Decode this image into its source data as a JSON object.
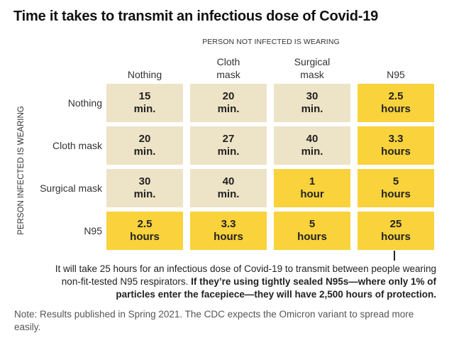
{
  "chart_data": {
    "type": "table",
    "title": "Time it takes to transmit an infectious dose of Covid-19",
    "column_group_label": "PERSON NOT INFECTED IS WEARING",
    "row_group_label": "PERSON INFECTED IS WEARING",
    "columns": [
      [
        "Nothing"
      ],
      [
        "Cloth",
        "mask"
      ],
      [
        "Surgical",
        "mask"
      ],
      [
        "N95"
      ]
    ],
    "rows": [
      "Nothing",
      "Cloth mask",
      "Surgical mask",
      "N95"
    ],
    "cells": [
      [
        {
          "value": 15,
          "unit": "min."
        },
        {
          "value": 20,
          "unit": "min."
        },
        {
          "value": 30,
          "unit": "min."
        },
        {
          "value": 2.5,
          "unit": "hours"
        }
      ],
      [
        {
          "value": 20,
          "unit": "min."
        },
        {
          "value": 27,
          "unit": "min."
        },
        {
          "value": 40,
          "unit": "min."
        },
        {
          "value": 3.3,
          "unit": "hours"
        }
      ],
      [
        {
          "value": 30,
          "unit": "min."
        },
        {
          "value": 40,
          "unit": "min."
        },
        {
          "value": 1,
          "unit": "hour"
        },
        {
          "value": 5,
          "unit": "hours"
        }
      ],
      [
        {
          "value": 2.5,
          "unit": "hours"
        },
        {
          "value": 3.3,
          "unit": "hours"
        },
        {
          "value": 5,
          "unit": "hours"
        },
        {
          "value": 25,
          "unit": "hours"
        }
      ]
    ],
    "colors": {
      "minutes": "#ede3c6",
      "hours": "#f9d23c"
    }
  },
  "annotation": {
    "normal": "It will take 25 hours for an infectious dose of Covid-19 to transmit between people wearing non-fit-tested N95 respirators.",
    "bold": "If they’re using tightly sealed N95s—where only 1% of particles enter the facepiece—they will have 2,500 hours of protection."
  },
  "note": "Note: Results published in Spring 2021. The CDC expects the Omicron variant to spread more easily."
}
